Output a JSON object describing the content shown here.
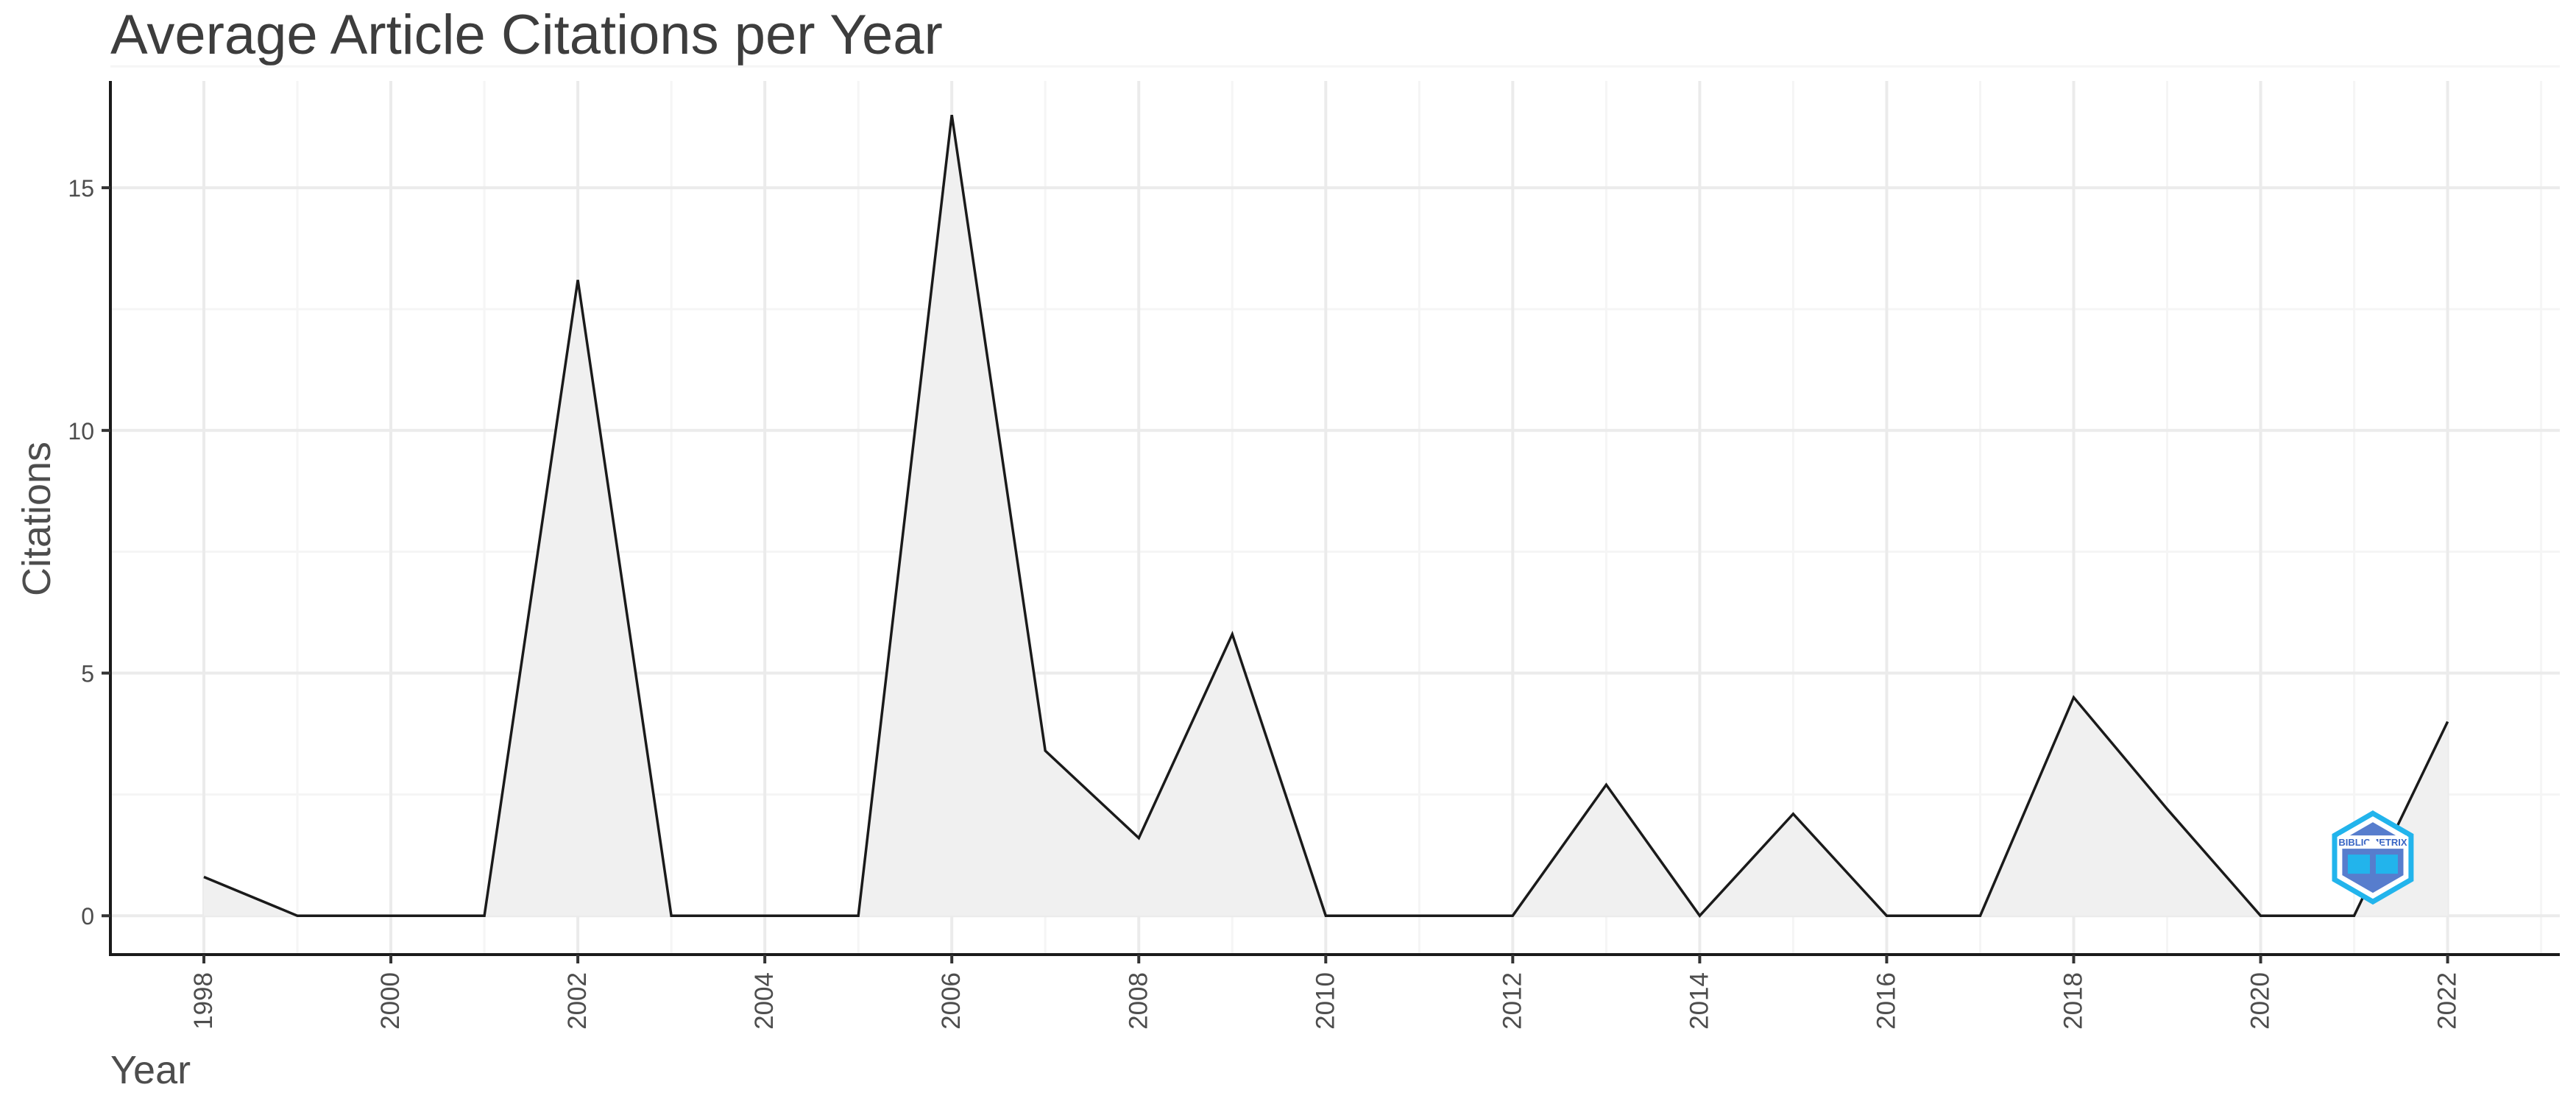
{
  "chart_data": {
    "type": "area",
    "title": "Average Article Citations per Year",
    "xlabel": "Year",
    "ylabel": "Citations",
    "x": [
      1998,
      1999,
      2000,
      2001,
      2002,
      2003,
      2004,
      2005,
      2006,
      2007,
      2008,
      2009,
      2010,
      2011,
      2012,
      2013,
      2014,
      2015,
      2016,
      2017,
      2018,
      2019,
      2020,
      2021,
      2022
    ],
    "series": [
      {
        "values": [
          0.8,
          0,
          0,
          0,
          13.1,
          0,
          0,
          0,
          16.5,
          3.4,
          1.6,
          5.8,
          0,
          0,
          0,
          2.7,
          0,
          2.1,
          0,
          0,
          4.5,
          2.2,
          0,
          0,
          4.0
        ]
      }
    ],
    "xlim": [
      1997.0,
      2023.2
    ],
    "ylim": [
      -0.8,
      17.2
    ],
    "x_ticks": [
      "1998",
      "2000",
      "2002",
      "2004",
      "2006",
      "2008",
      "2010",
      "2012",
      "2014",
      "2016",
      "2018",
      "2020",
      "2022"
    ],
    "y_ticks": [
      "0",
      "5",
      "10",
      "15"
    ],
    "grid": true,
    "colors": {
      "line": "#1a1a1a",
      "fill": "#f0f0f0",
      "grid_major": "#ebebeb",
      "grid_minor": "#f5f5f5",
      "axis": "#1a1a1a",
      "logo_dark": "#3a66c4",
      "logo_light": "#22b4ec"
    },
    "logo": {
      "icon": "bibliometrix-logo",
      "text": "BIBLIOMETRIX"
    }
  }
}
